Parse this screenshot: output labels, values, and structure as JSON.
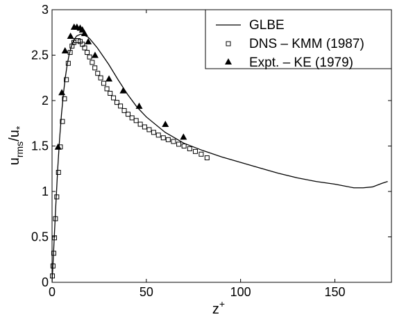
{
  "chart_data": {
    "type": "line",
    "xlabel": {
      "base": "z",
      "sup": "+"
    },
    "ylabel": {
      "num": "u",
      "num_sub": "rms",
      "den": "u",
      "den_sub": "*"
    },
    "xlim": [
      0,
      180
    ],
    "ylim": [
      0,
      3
    ],
    "xticks": [
      0,
      50,
      100,
      150
    ],
    "yticks": [
      0,
      0.5,
      1,
      1.5,
      2,
      2.5,
      3
    ],
    "xtick_labels": [
      "0",
      "50",
      "100",
      "150"
    ],
    "ytick_labels": [
      "0",
      "0.5",
      "1",
      "1.5",
      "2",
      "2.5",
      "3"
    ],
    "grid": false,
    "legend_position": "top-right",
    "series": [
      {
        "name": "GLBE",
        "style": "solid-line",
        "x": [
          0,
          0.5,
          1,
          2,
          3,
          4,
          5,
          6,
          7,
          8,
          9,
          10,
          11,
          12,
          13,
          14,
          15,
          16,
          17,
          18,
          19,
          20,
          22,
          24,
          26,
          28,
          30,
          35,
          40,
          45,
          50,
          60,
          70,
          80,
          90,
          100,
          110,
          120,
          130,
          140,
          150,
          160,
          165,
          170,
          175,
          178
        ],
        "y": [
          0,
          0.2,
          0.42,
          0.85,
          1.25,
          1.58,
          1.85,
          2.07,
          2.25,
          2.39,
          2.5,
          2.58,
          2.64,
          2.68,
          2.71,
          2.72,
          2.73,
          2.73,
          2.72,
          2.71,
          2.7,
          2.68,
          2.63,
          2.58,
          2.52,
          2.46,
          2.4,
          2.23,
          2.07,
          1.93,
          1.82,
          1.65,
          1.53,
          1.45,
          1.38,
          1.32,
          1.26,
          1.2,
          1.15,
          1.11,
          1.08,
          1.04,
          1.04,
          1.05,
          1.09,
          1.11
        ]
      },
      {
        "name": "DNS – KMM (1987)",
        "style": "open-square",
        "x": [
          0.2,
          0.5,
          0.9,
          1.3,
          1.8,
          2.5,
          3.4,
          4.4,
          5.5,
          6.6,
          7.6,
          8.6,
          9.6,
          10.6,
          11.6,
          12.7,
          13.8,
          14.9,
          16.1,
          17.3,
          18.6,
          19.9,
          21.3,
          22.7,
          24.2,
          25.8,
          27.4,
          29.1,
          30.8,
          32.6,
          34.4,
          36.3,
          38.3,
          40.3,
          42.4,
          44.6,
          46.8,
          49.1,
          51.5,
          53.9,
          56.4,
          59.0,
          61.6,
          64.4,
          67.2,
          70.0,
          73.0,
          76.0,
          79.1,
          82.2
        ],
        "y": [
          0.07,
          0.18,
          0.32,
          0.49,
          0.7,
          0.94,
          1.21,
          1.49,
          1.77,
          2.02,
          2.23,
          2.41,
          2.53,
          2.6,
          2.64,
          2.66,
          2.66,
          2.65,
          2.62,
          2.58,
          2.53,
          2.48,
          2.42,
          2.36,
          2.3,
          2.25,
          2.19,
          2.13,
          2.08,
          2.03,
          1.98,
          1.94,
          1.89,
          1.85,
          1.81,
          1.78,
          1.74,
          1.71,
          1.68,
          1.65,
          1.62,
          1.59,
          1.57,
          1.55,
          1.52,
          1.5,
          1.47,
          1.44,
          1.41,
          1.37
        ]
      },
      {
        "name": "Expt. – KE (1979)",
        "style": "filled-triangle",
        "x": [
          3.2,
          5.2,
          6.9,
          9.8,
          11.7,
          13.2,
          14.9,
          16.1,
          17.2,
          19.2,
          22.8,
          30.2,
          37.7,
          46.2,
          60.1,
          69.7
        ],
        "y": [
          1.49,
          2.09,
          2.55,
          2.71,
          2.81,
          2.81,
          2.8,
          2.78,
          2.74,
          2.65,
          2.5,
          2.24,
          2.11,
          1.94,
          1.74,
          1.6
        ]
      }
    ]
  }
}
